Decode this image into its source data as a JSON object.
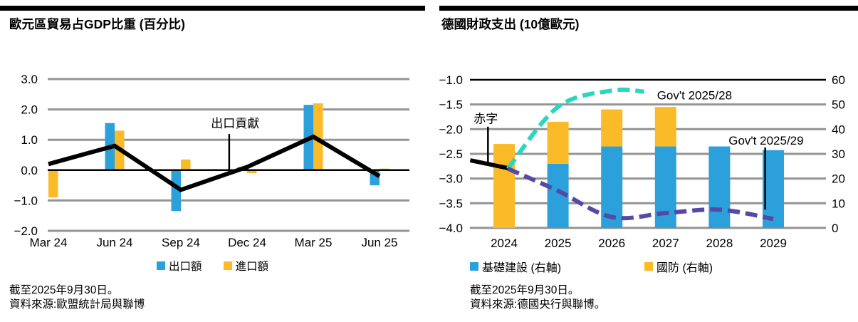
{
  "left_chart": {
    "title": "歐元區貿易占GDP比重 (百分比)",
    "legend": [
      {
        "label": "出口額",
        "color": "#2CA0DA"
      },
      {
        "label": "進口額",
        "color": "#FBBA28"
      }
    ],
    "footnotes": [
      "截至2025年9月30日。",
      "資料來源:歐盟統計局與聯博"
    ],
    "chart_data": {
      "type": "bar+line",
      "categories": [
        "Mar 24",
        "Jun 24",
        "Sep 24",
        "Dec 24",
        "Mar 25",
        "Jun 25"
      ],
      "series": [
        {
          "name": "出口額",
          "type": "bar",
          "color": "#2CA0DA",
          "values": [
            0,
            1.55,
            -1.35,
            0.1,
            2.15,
            -0.5
          ]
        },
        {
          "name": "進口額",
          "type": "bar",
          "color": "#FBBA28",
          "values": [
            -0.9,
            1.3,
            0.35,
            -0.1,
            2.2,
            0.05
          ]
        },
        {
          "name": "出口貢獻",
          "type": "line",
          "color": "#000000",
          "values": [
            0.2,
            0.8,
            -0.65,
            0.1,
            1.1,
            -0.2
          ]
        }
      ],
      "ylim": [
        -2,
        3
      ],
      "yticks": [
        {
          "v": 3,
          "label": "3.0"
        },
        {
          "v": 2,
          "label": "2.0"
        },
        {
          "v": 1,
          "label": "1.0"
        },
        {
          "v": 0,
          "label": "0.0"
        },
        {
          "v": -1,
          "label": "−1.0"
        },
        {
          "v": -2,
          "label": "−2.0"
        }
      ],
      "gridline_color": "#949494",
      "annotation": {
        "text": "出口貢獻",
        "label_xi": 2.82,
        "label_v": 1.4,
        "line_xi": 2.73,
        "line_from_v": 1.19,
        "line_to_v": -0.08
      }
    }
  },
  "right_chart": {
    "title": "德國財政支出 (10億歐元)",
    "legend": [
      {
        "label": "基礎建設 (右軸)",
        "color": "#2CA0DA"
      },
      {
        "label": "國防 (右軸)",
        "color": "#FBBA28"
      }
    ],
    "footnotes": [
      "截至2025年9月30日。",
      "資料來源:德國央行與聯博。"
    ],
    "chart_data": {
      "type": "stacked-bar+line, dual axis",
      "categories": [
        "2024",
        "2025",
        "2026",
        "2027",
        "2028",
        "2029"
      ],
      "left_axis": {
        "range": [
          -4.0,
          -1.0
        ],
        "ticks": [
          {
            "v": -1.0,
            "label": "−1.0"
          },
          {
            "v": -1.5,
            "label": "−1.5"
          },
          {
            "v": -2.0,
            "label": "−2.0"
          },
          {
            "v": -2.5,
            "label": "−2.5"
          },
          {
            "v": -3.0,
            "label": "−3.0"
          },
          {
            "v": -3.5,
            "label": "−3.5"
          },
          {
            "v": -4.0,
            "label": "−4.0"
          }
        ]
      },
      "right_axis": {
        "range": [
          0,
          60
        ],
        "ticks": [
          {
            "v": 60,
            "label": "60"
          },
          {
            "v": 50,
            "label": "50"
          },
          {
            "v": 40,
            "label": "40"
          },
          {
            "v": 30,
            "label": "30"
          },
          {
            "v": 20,
            "label": "20"
          },
          {
            "v": 10,
            "label": "10"
          },
          {
            "v": 0,
            "label": "0"
          }
        ]
      },
      "bar_series": [
        {
          "name": "基礎建設 (右軸)",
          "axis": "right",
          "color": "#2CA0DA",
          "values": [
            0,
            26,
            33,
            33,
            33,
            31.5
          ]
        },
        {
          "name": "國防 (右軸)",
          "axis": "right",
          "color": "#FBBA28",
          "values": [
            34,
            17,
            15,
            16,
            0,
            0
          ]
        }
      ],
      "line_series": [
        {
          "name": "赤字",
          "axis": "left",
          "style": "solid",
          "smooth": false,
          "color": "#000000",
          "points": [
            {
              "xi": -0.63,
              "v": -2.63
            },
            {
              "xi": 0.07,
              "v": -2.79
            }
          ]
        },
        {
          "name": "Gov't 2025/28",
          "axis": "left",
          "style": "dashed",
          "smooth": true,
          "color": "#2BD6BE",
          "points": [
            {
              "xi": 0.07,
              "v": -2.8
            },
            {
              "xi": 1,
              "v": -1.55
            },
            {
              "xi": 2,
              "v": -1.22
            },
            {
              "xi": 2.6,
              "v": -1.24
            }
          ]
        },
        {
          "name": "Gov't 2025/29",
          "axis": "left",
          "style": "dashed",
          "smooth": true,
          "color": "#5449A4",
          "points": [
            {
              "xi": 0.07,
              "v": -2.8
            },
            {
              "xi": 1,
              "v": -3.25
            },
            {
              "xi": 2,
              "v": -3.78
            },
            {
              "xi": 3,
              "v": -3.7
            },
            {
              "xi": 4,
              "v": -3.63
            },
            {
              "xi": 5,
              "v": -3.82
            }
          ]
        }
      ],
      "gridline_color": "#949494",
      "annotations": [
        {
          "text": "赤字",
          "anchor": "middle",
          "label_xi": -0.34,
          "label_v": -1.87,
          "line": {
            "xi": -0.3,
            "from_v": -1.95,
            "to_v": -2.67
          }
        },
        {
          "text": "Gov't 2025/28",
          "anchor": "start",
          "label_xi": 2.84,
          "label_v": -1.4
        },
        {
          "text": "Gov't 2025/29",
          "anchor": "start",
          "label_xi": 4.17,
          "label_v": -2.31,
          "line": {
            "xi": 4.85,
            "from_v": -2.37,
            "to_v": -3.63
          }
        }
      ]
    }
  }
}
